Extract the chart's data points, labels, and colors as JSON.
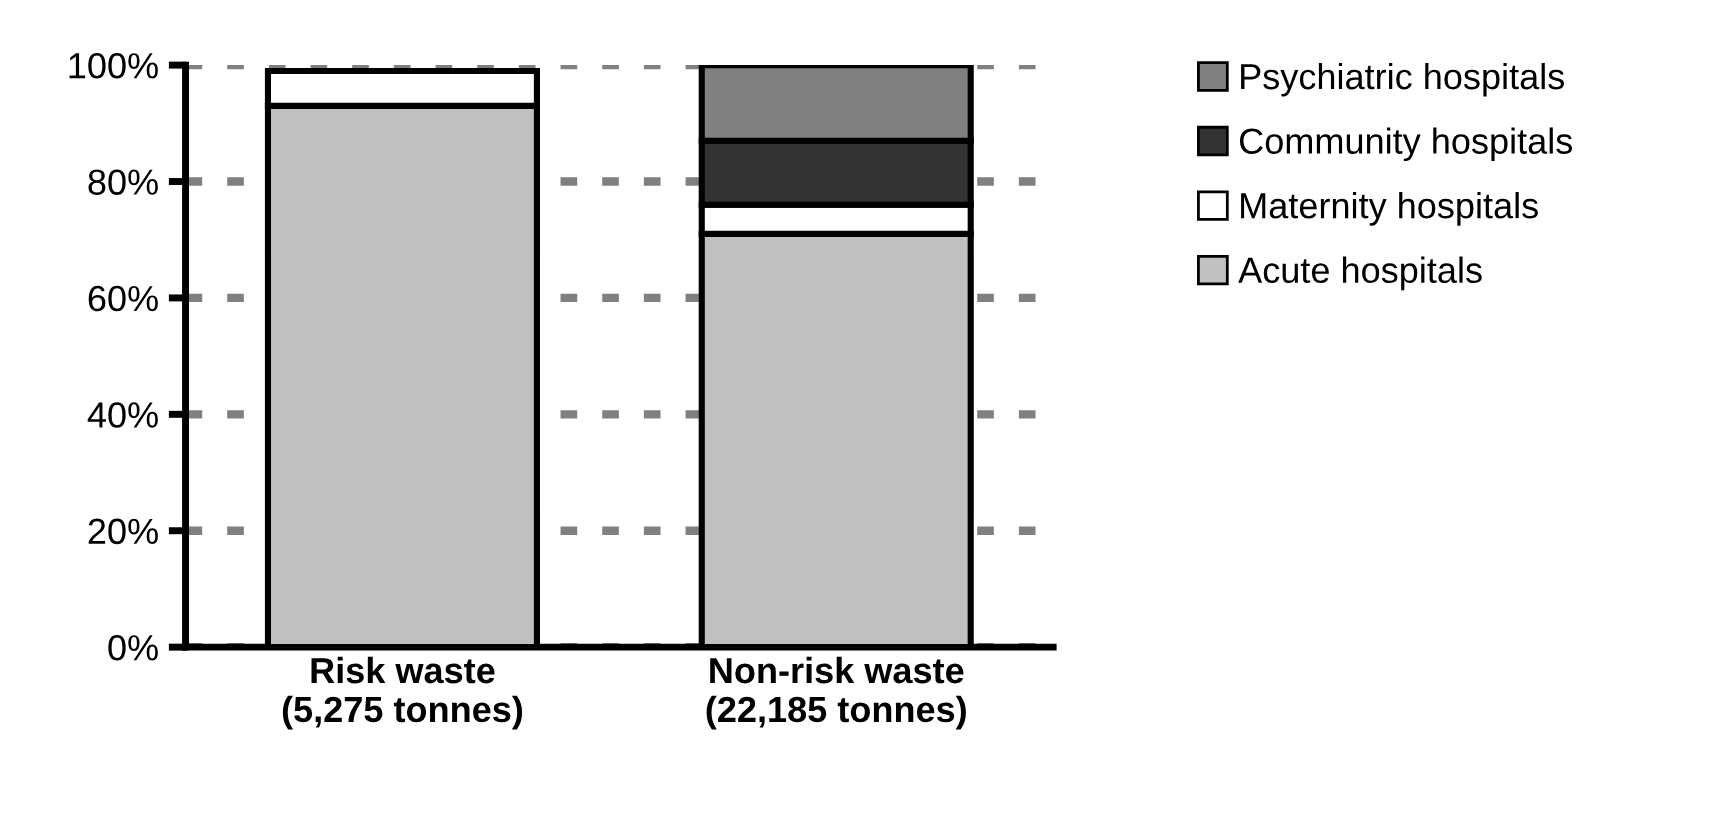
{
  "chart_data": {
    "type": "bar",
    "stacked": true,
    "categories": [
      "Risk waste\n(5,275 tonnes)",
      "Non-risk waste\n(22,185 tonnes)"
    ],
    "series": [
      {
        "name": "Acute hospitals",
        "color": "#c0c0c0",
        "values": [
          93,
          71
        ]
      },
      {
        "name": "Maternity hospitals",
        "color": "#ffffff",
        "values": [
          6,
          5
        ]
      },
      {
        "name": "Community hospitals",
        "color": "#333333",
        "values": [
          null,
          11
        ]
      },
      {
        "name": "Psychiatric hospitals",
        "color": "#808080",
        "values": [
          null,
          13
        ]
      }
    ],
    "ylim": [
      0,
      100
    ],
    "yticks": [
      {
        "value": 0,
        "label": "0%"
      },
      {
        "value": 20,
        "label": "20%"
      },
      {
        "value": 40,
        "label": "40%"
      },
      {
        "value": 60,
        "label": "60%"
      },
      {
        "value": 80,
        "label": "80%"
      },
      {
        "value": 100,
        "label": "100%"
      }
    ],
    "grid": "y",
    "legend": "top right"
  }
}
